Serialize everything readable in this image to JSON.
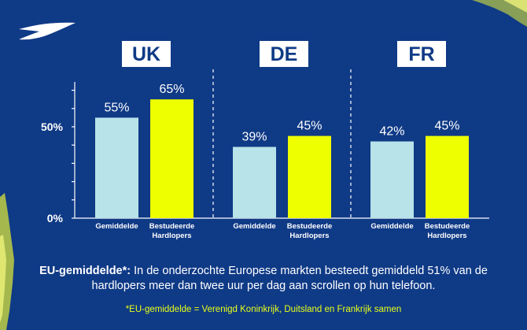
{
  "colors": {
    "background": "#0f3a86",
    "average_bar": "#b7e3e9",
    "runner_bar": "#eeff00",
    "text": "#ffffff",
    "footnote": "#e9ff1a"
  },
  "logo": {
    "icon": "swoosh-chevron-logo-icon"
  },
  "chart_data": {
    "type": "bar",
    "y_ticks": [
      "0%",
      "50%"
    ],
    "ylim": [
      0,
      100
    ],
    "groups": [
      {
        "title": "UK",
        "categories": [
          "Gemiddelde",
          "Bestudeerde Hardlopers"
        ],
        "values": [
          55,
          65
        ],
        "labels": [
          "55%",
          "65%"
        ]
      },
      {
        "title": "DE",
        "categories": [
          "Gemiddelde",
          "Bestudeerde Hardlopers"
        ],
        "values": [
          39,
          45
        ],
        "labels": [
          "39%",
          "45%"
        ]
      },
      {
        "title": "FR",
        "categories": [
          "Gemiddelde",
          "Bestudeerde Hardlopers"
        ],
        "values": [
          42,
          45
        ],
        "labels": [
          "42%",
          "45%"
        ]
      }
    ],
    "grid": false
  },
  "caption": {
    "bold": "EU-gemiddelde*:",
    "text": " In de onderzochte Europese markten besteedt gemiddeld 51% van de hardlopers meer dan twee uur per dag aan scrollen op hun telefoon."
  },
  "footnote": "*EU-gemiddelde = Verenigd Koninkrijk, Duitsland en Frankrijk samen"
}
